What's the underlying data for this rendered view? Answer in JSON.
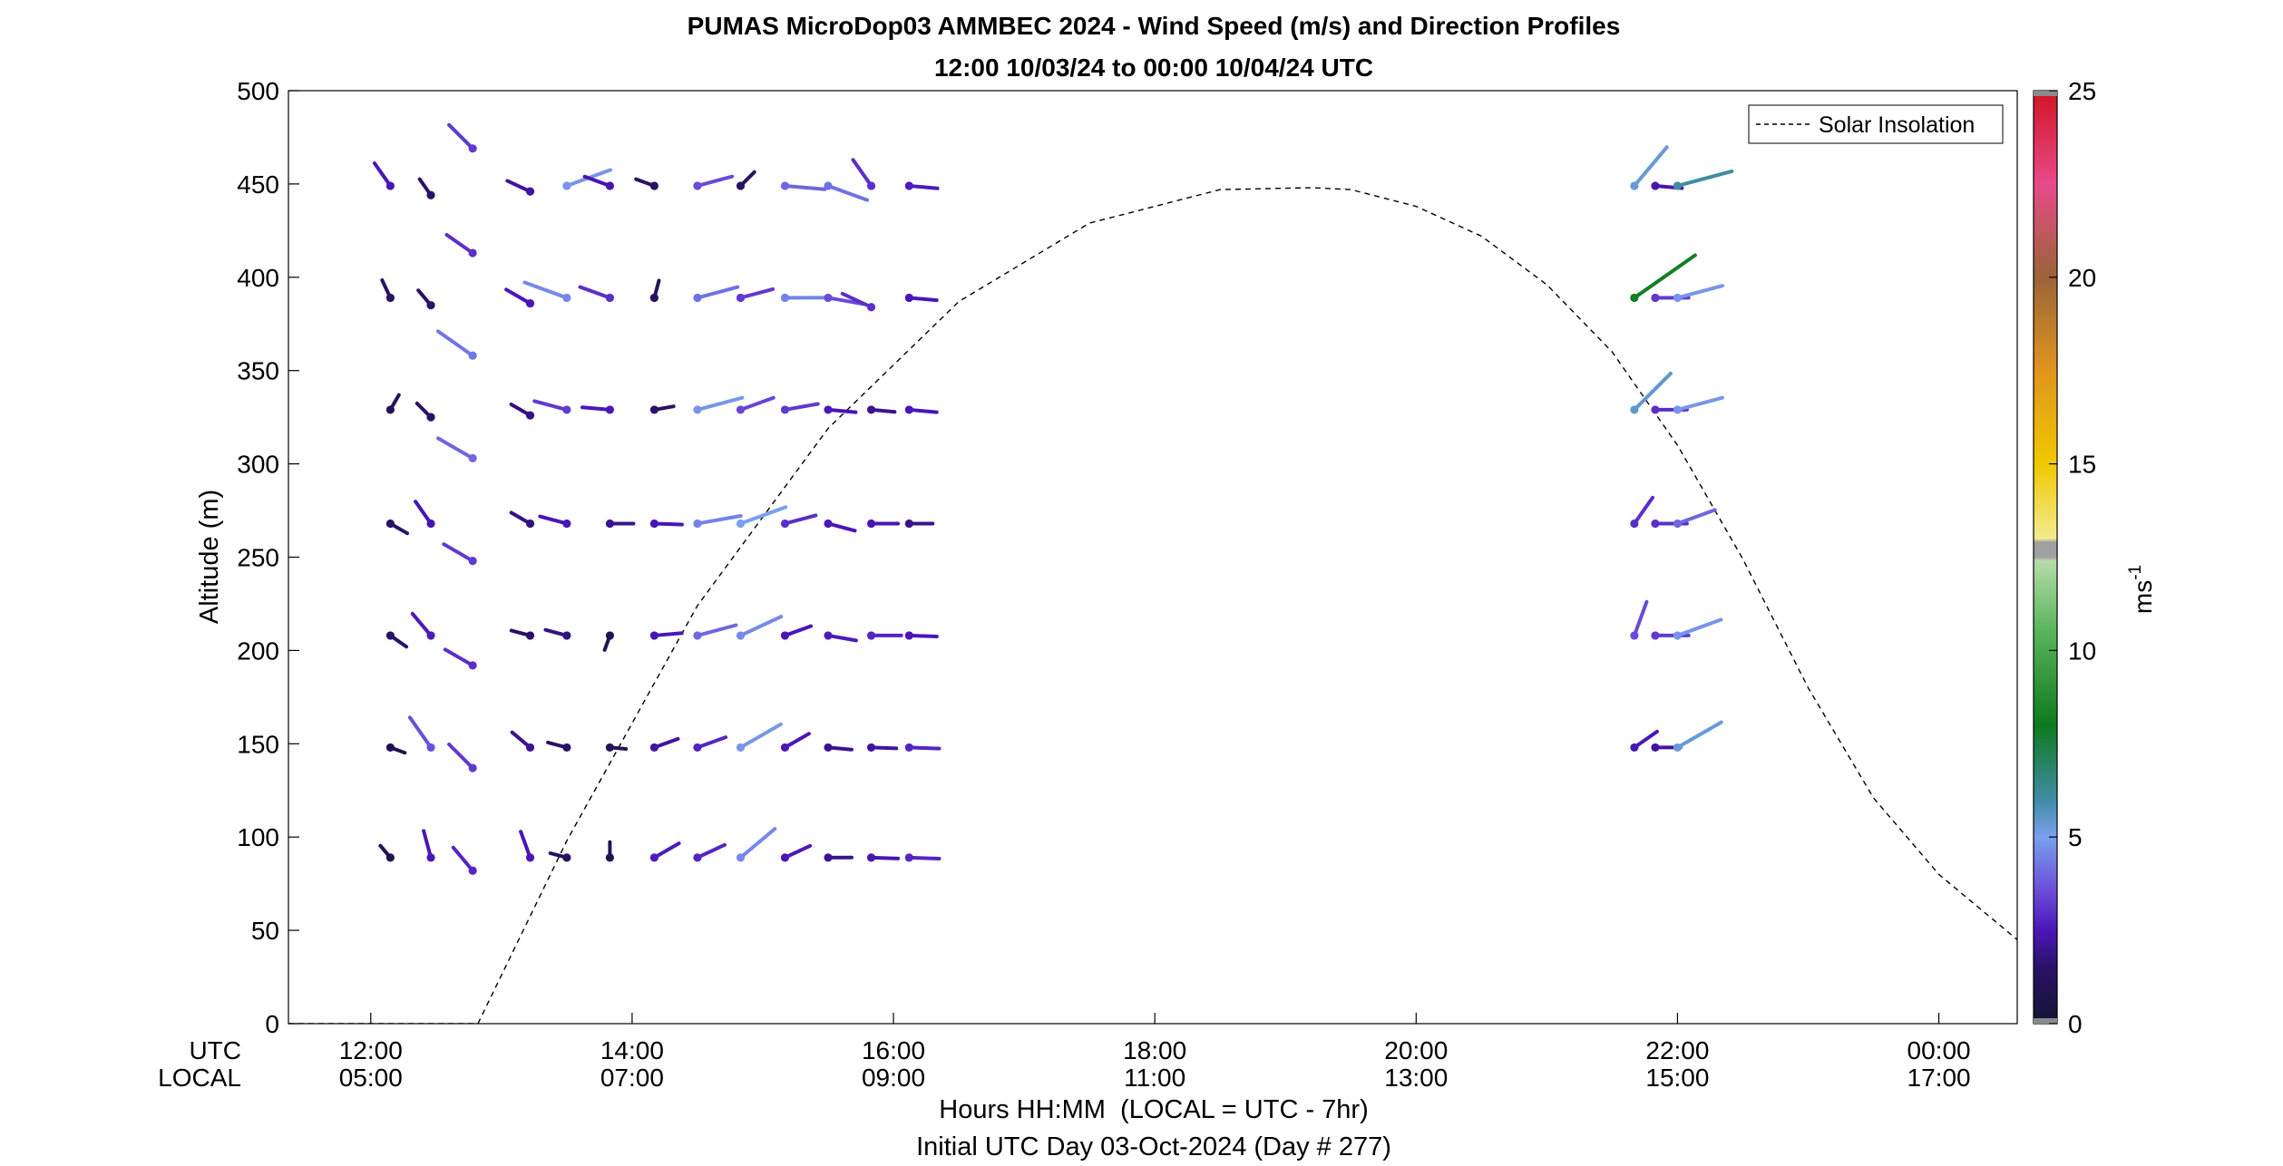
{
  "chart_data": {
    "type": "wind-barb-profile",
    "title": "PUMAS MicroDop03 AMMBEC 2024 - Wind Speed (m/s) and Direction Profiles",
    "subtitle": "12:00 10/03/24 to 00:00 10/04/24  UTC",
    "ylabel": "Altitude (m)",
    "xlabel": "Hours HH:MM  (LOCAL = UTC - 7hr)",
    "footnote": "Initial UTC Day 03-Oct-2024 (Day # 277)",
    "x_row_labels": [
      "UTC",
      "LOCAL"
    ],
    "x_unit": "hours UTC",
    "xlim": [
      11.37,
      24.6
    ],
    "ylim": [
      0,
      500
    ],
    "yticks": [
      0,
      50,
      100,
      150,
      200,
      250,
      300,
      350,
      400,
      450,
      500
    ],
    "xticks": [
      {
        "value": 12,
        "utc": "12:00",
        "local": "05:00"
      },
      {
        "value": 14,
        "utc": "14:00",
        "local": "07:00"
      },
      {
        "value": 16,
        "utc": "16:00",
        "local": "09:00"
      },
      {
        "value": 18,
        "utc": "18:00",
        "local": "11:00"
      },
      {
        "value": 20,
        "utc": "20:00",
        "local": "13:00"
      },
      {
        "value": 22,
        "utc": "22:00",
        "local": "15:00"
      },
      {
        "value": 24,
        "utc": "00:00",
        "local": "17:00"
      }
    ],
    "colorbar": {
      "label": "ms",
      "label_superscript": "-1",
      "range": [
        0,
        25
      ],
      "ticks": [
        0,
        5,
        10,
        15,
        20,
        25
      ],
      "stops": [
        {
          "v": 0,
          "c": "#141432"
        },
        {
          "v": 1.5,
          "c": "#2a1266"
        },
        {
          "v": 2.5,
          "c": "#4a16b8"
        },
        {
          "v": 3.5,
          "c": "#6a4ad8"
        },
        {
          "v": 5,
          "c": "#7aa0ee"
        },
        {
          "v": 6,
          "c": "#3f8ca4"
        },
        {
          "v": 8,
          "c": "#0e7a1e"
        },
        {
          "v": 10.5,
          "c": "#58b45a"
        },
        {
          "v": 12.4,
          "c": "#b6dcab"
        },
        {
          "v": 12.5,
          "c": "#a0a0a0"
        },
        {
          "v": 12.9,
          "c": "#a0a0a0"
        },
        {
          "v": 13,
          "c": "#f2ec90"
        },
        {
          "v": 15,
          "c": "#f0c800"
        },
        {
          "v": 17.5,
          "c": "#e0941e"
        },
        {
          "v": 20,
          "c": "#9a6438"
        },
        {
          "v": 22.5,
          "c": "#e84a8a"
        },
        {
          "v": 25,
          "c": "#d01424"
        }
      ]
    },
    "legend": {
      "entries": [
        "Solar Insolation"
      ],
      "position": "top-right"
    },
    "solar_insolation": {
      "style": "dashed",
      "color": "#000000",
      "x": [
        11.37,
        12.82,
        13.5,
        14.5,
        15.5,
        16.5,
        17.5,
        18.5,
        19.2,
        19.5,
        20,
        20.5,
        21,
        21.5,
        22,
        22.5,
        23,
        23.5,
        24,
        24.6
      ],
      "y": [
        0,
        0,
        98,
        224,
        319,
        387,
        429,
        447,
        448,
        447,
        438,
        422,
        396,
        360,
        310,
        249,
        180,
        121,
        80,
        45
      ]
    },
    "barbs": [
      {
        "t": 12.15,
        "alt": 89,
        "dir": 320,
        "spd": 1.0
      },
      {
        "t": 12.46,
        "alt": 89,
        "dir": 345,
        "spd": 2.5
      },
      {
        "t": 12.78,
        "alt": 82,
        "dir": 320,
        "spd": 2.8
      },
      {
        "t": 13.22,
        "alt": 89,
        "dir": 340,
        "spd": 2.5
      },
      {
        "t": 13.5,
        "alt": 89,
        "dir": 285,
        "spd": 1.2
      },
      {
        "t": 13.83,
        "alt": 89,
        "dir": 0,
        "spd": 1.0
      },
      {
        "t": 14.17,
        "alt": 89,
        "dir": 60,
        "spd": 2.6
      },
      {
        "t": 14.5,
        "alt": 89,
        "dir": 65,
        "spd": 2.8
      },
      {
        "t": 14.83,
        "alt": 89,
        "dir": 50,
        "spd": 4.6
      },
      {
        "t": 15.17,
        "alt": 89,
        "dir": 65,
        "spd": 2.5
      },
      {
        "t": 15.5,
        "alt": 89,
        "dir": 90,
        "spd": 2.0
      },
      {
        "t": 15.83,
        "alt": 89,
        "dir": 92,
        "spd": 2.4
      },
      {
        "t": 16.12,
        "alt": 89,
        "dir": 92,
        "spd": 2.8
      },
      {
        "t": 12.15,
        "alt": 148,
        "dir": 110,
        "spd": 1.0
      },
      {
        "t": 12.46,
        "alt": 148,
        "dir": 325,
        "spd": 3.6
      },
      {
        "t": 12.78,
        "alt": 137,
        "dir": 315,
        "spd": 3.2
      },
      {
        "t": 13.22,
        "alt": 148,
        "dir": 310,
        "spd": 2.0
      },
      {
        "t": 13.5,
        "alt": 148,
        "dir": 285,
        "spd": 1.5
      },
      {
        "t": 13.83,
        "alt": 148,
        "dir": 95,
        "spd": 1.1
      },
      {
        "t": 14.17,
        "alt": 148,
        "dir": 70,
        "spd": 2.2
      },
      {
        "t": 14.5,
        "alt": 148,
        "dir": 70,
        "spd": 2.8
      },
      {
        "t": 14.83,
        "alt": 148,
        "dir": 60,
        "spd": 4.8
      },
      {
        "t": 15.17,
        "alt": 148,
        "dir": 60,
        "spd": 2.5
      },
      {
        "t": 15.5,
        "alt": 148,
        "dir": 95,
        "spd": 2.0
      },
      {
        "t": 15.83,
        "alt": 148,
        "dir": 92,
        "spd": 2.2
      },
      {
        "t": 16.12,
        "alt": 148,
        "dir": 92,
        "spd": 2.8
      },
      {
        "t": 21.67,
        "alt": 148,
        "dir": 55,
        "spd": 2.5
      },
      {
        "t": 21.83,
        "alt": 148,
        "dir": 90,
        "spd": 2.2
      },
      {
        "t": 22.0,
        "alt": 148,
        "dir": 60,
        "spd": 5.3
      },
      {
        "t": 12.15,
        "alt": 208,
        "dir": 125,
        "spd": 1.5
      },
      {
        "t": 12.46,
        "alt": 208,
        "dir": 320,
        "spd": 2.6
      },
      {
        "t": 12.78,
        "alt": 192,
        "dir": 300,
        "spd": 3.0
      },
      {
        "t": 13.22,
        "alt": 208,
        "dir": 285,
        "spd": 1.5
      },
      {
        "t": 13.5,
        "alt": 208,
        "dir": 285,
        "spd": 1.8
      },
      {
        "t": 13.83,
        "alt": 208,
        "dir": 200,
        "spd": 1.0
      },
      {
        "t": 14.17,
        "alt": 208,
        "dir": 85,
        "spd": 2.5
      },
      {
        "t": 14.5,
        "alt": 208,
        "dir": 75,
        "spd": 4.0
      },
      {
        "t": 14.83,
        "alt": 208,
        "dir": 65,
        "spd": 4.6
      },
      {
        "t": 15.17,
        "alt": 208,
        "dir": 70,
        "spd": 2.5
      },
      {
        "t": 15.5,
        "alt": 208,
        "dir": 100,
        "spd": 2.6
      },
      {
        "t": 15.83,
        "alt": 208,
        "dir": 90,
        "spd": 2.8
      },
      {
        "t": 16.12,
        "alt": 208,
        "dir": 92,
        "spd": 2.5
      },
      {
        "t": 21.67,
        "alt": 208,
        "dir": 20,
        "spd": 3.5
      },
      {
        "t": 21.83,
        "alt": 208,
        "dir": 90,
        "spd": 3.2
      },
      {
        "t": 22.0,
        "alt": 208,
        "dir": 70,
        "spd": 4.8
      },
      {
        "t": 12.15,
        "alt": 268,
        "dir": 120,
        "spd": 1.5
      },
      {
        "t": 12.46,
        "alt": 268,
        "dir": 325,
        "spd": 2.4
      },
      {
        "t": 12.78,
        "alt": 248,
        "dir": 300,
        "spd": 3.2
      },
      {
        "t": 13.22,
        "alt": 268,
        "dir": 300,
        "spd": 1.8
      },
      {
        "t": 13.5,
        "alt": 268,
        "dir": 285,
        "spd": 2.5
      },
      {
        "t": 13.83,
        "alt": 268,
        "dir": 90,
        "spd": 2.0
      },
      {
        "t": 14.17,
        "alt": 268,
        "dir": 92,
        "spd": 2.5
      },
      {
        "t": 14.5,
        "alt": 268,
        "dir": 80,
        "spd": 4.5
      },
      {
        "t": 14.83,
        "alt": 268,
        "dir": 70,
        "spd": 5.0
      },
      {
        "t": 15.17,
        "alt": 268,
        "dir": 75,
        "spd": 3.0
      },
      {
        "t": 15.5,
        "alt": 268,
        "dir": 105,
        "spd": 2.5
      },
      {
        "t": 15.83,
        "alt": 268,
        "dir": 90,
        "spd": 2.4
      },
      {
        "t": 16.12,
        "alt": 268,
        "dir": 90,
        "spd": 2.0
      },
      {
        "t": 21.67,
        "alt": 268,
        "dir": 35,
        "spd": 3.0
      },
      {
        "t": 21.83,
        "alt": 268,
        "dir": 90,
        "spd": 3.0
      },
      {
        "t": 22.0,
        "alt": 268,
        "dir": 70,
        "spd": 4.0
      },
      {
        "t": 12.15,
        "alt": 329,
        "dir": 30,
        "spd": 1.2
      },
      {
        "t": 12.46,
        "alt": 325,
        "dir": 315,
        "spd": 1.5
      },
      {
        "t": 12.78,
        "alt": 303,
        "dir": 300,
        "spd": 4.0
      },
      {
        "t": 13.22,
        "alt": 326,
        "dir": 300,
        "spd": 1.8
      },
      {
        "t": 13.5,
        "alt": 329,
        "dir": 285,
        "spd": 3.2
      },
      {
        "t": 13.83,
        "alt": 329,
        "dir": 275,
        "spd": 2.5
      },
      {
        "t": 14.17,
        "alt": 329,
        "dir": 80,
        "spd": 1.5
      },
      {
        "t": 14.5,
        "alt": 329,
        "dir": 75,
        "spd": 4.8
      },
      {
        "t": 14.83,
        "alt": 329,
        "dir": 70,
        "spd": 3.4
      },
      {
        "t": 15.17,
        "alt": 329,
        "dir": 80,
        "spd": 3.2
      },
      {
        "t": 15.5,
        "alt": 329,
        "dir": 95,
        "spd": 2.5
      },
      {
        "t": 15.83,
        "alt": 329,
        "dir": 95,
        "spd": 2.0
      },
      {
        "t": 16.12,
        "alt": 329,
        "dir": 95,
        "spd": 2.5
      },
      {
        "t": 21.67,
        "alt": 329,
        "dir": 45,
        "spd": 5.4
      },
      {
        "t": 21.83,
        "alt": 329,
        "dir": 90,
        "spd": 3.0
      },
      {
        "t": 22.0,
        "alt": 329,
        "dir": 75,
        "spd": 4.8
      },
      {
        "t": 12.15,
        "alt": 389,
        "dir": 335,
        "spd": 1.5
      },
      {
        "t": 12.46,
        "alt": 385,
        "dir": 320,
        "spd": 1.5
      },
      {
        "t": 12.78,
        "alt": 358,
        "dir": 305,
        "spd": 4.3
      },
      {
        "t": 13.22,
        "alt": 386,
        "dir": 300,
        "spd": 2.5
      },
      {
        "t": 13.5,
        "alt": 389,
        "dir": 290,
        "spd": 4.6
      },
      {
        "t": 13.83,
        "alt": 389,
        "dir": 290,
        "spd": 3.0
      },
      {
        "t": 14.17,
        "alt": 389,
        "dir": 15,
        "spd": 1.3
      },
      {
        "t": 14.5,
        "alt": 389,
        "dir": 75,
        "spd": 4.2
      },
      {
        "t": 14.83,
        "alt": 389,
        "dir": 75,
        "spd": 3.2
      },
      {
        "t": 15.17,
        "alt": 389,
        "dir": 90,
        "spd": 4.5
      },
      {
        "t": 15.5,
        "alt": 389,
        "dir": 100,
        "spd": 3.5
      },
      {
        "t": 15.83,
        "alt": 384,
        "dir": 295,
        "spd": 3.0
      },
      {
        "t": 16.12,
        "alt": 389,
        "dir": 95,
        "spd": 2.5
      },
      {
        "t": 21.67,
        "alt": 389,
        "dir": 55,
        "spd": 8.2
      },
      {
        "t": 21.83,
        "alt": 389,
        "dir": 90,
        "spd": 3.2
      },
      {
        "t": 22.0,
        "alt": 389,
        "dir": 75,
        "spd": 4.8
      },
      {
        "t": 12.15,
        "alt": 449,
        "dir": 325,
        "spd": 2.5
      },
      {
        "t": 12.46,
        "alt": 444,
        "dir": 325,
        "spd": 1.5
      },
      {
        "t": 12.78,
        "alt": 413,
        "dir": 305,
        "spd": 3.0
      },
      {
        "t": 12.78,
        "alt": 469,
        "dir": 315,
        "spd": 3.2
      },
      {
        "t": 13.22,
        "alt": 446,
        "dir": 295,
        "spd": 2.2
      },
      {
        "t": 13.5,
        "alt": 449,
        "dir": 70,
        "spd": 4.8
      },
      {
        "t": 13.83,
        "alt": 449,
        "dir": 290,
        "spd": 2.4
      },
      {
        "t": 14.17,
        "alt": 449,
        "dir": 290,
        "spd": 1.5
      },
      {
        "t": 14.5,
        "alt": 449,
        "dir": 75,
        "spd": 3.5
      },
      {
        "t": 14.83,
        "alt": 449,
        "dir": 45,
        "spd": 1.5
      },
      {
        "t": 15.17,
        "alt": 449,
        "dir": 95,
        "spd": 4.0
      },
      {
        "t": 15.5,
        "alt": 449,
        "dir": 110,
        "spd": 4.2
      },
      {
        "t": 15.83,
        "alt": 449,
        "dir": 325,
        "spd": 3.0
      },
      {
        "t": 16.12,
        "alt": 449,
        "dir": 95,
        "spd": 2.6
      },
      {
        "t": 21.67,
        "alt": 449,
        "dir": 40,
        "spd": 5.3
      },
      {
        "t": 21.83,
        "alt": 449,
        "dir": 95,
        "spd": 2.4
      },
      {
        "t": 22.0,
        "alt": 449,
        "dir": 75,
        "spd": 6.0
      }
    ]
  }
}
